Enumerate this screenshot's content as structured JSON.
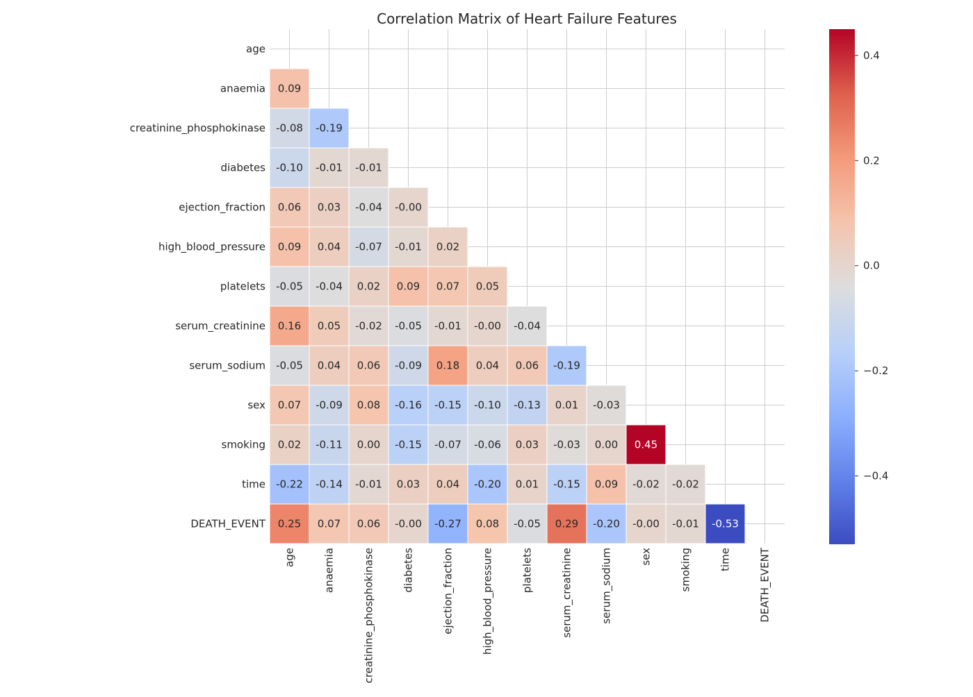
{
  "chart_data": {
    "type": "heatmap",
    "title": "Correlation Matrix of Heart Failure Features",
    "variables": [
      "age",
      "anaemia",
      "creatinine_phosphokinase",
      "diabetes",
      "ejection_fraction",
      "high_blood_pressure",
      "platelets",
      "serum_creatinine",
      "serum_sodium",
      "sex",
      "smoking",
      "time",
      "DEATH_EVENT"
    ],
    "mask": "upper-triangle-including-diagonal",
    "values": [
      [],
      [
        0.09
      ],
      [
        -0.08,
        -0.19
      ],
      [
        -0.1,
        -0.01,
        -0.01
      ],
      [
        0.06,
        0.03,
        -0.04,
        -0.0
      ],
      [
        0.09,
        0.04,
        -0.07,
        -0.01,
        0.02
      ],
      [
        -0.05,
        -0.04,
        0.02,
        0.09,
        0.07,
        0.05
      ],
      [
        0.16,
        0.05,
        -0.02,
        -0.05,
        -0.01,
        -0.0,
        -0.04
      ],
      [
        -0.05,
        0.04,
        0.06,
        -0.09,
        0.18,
        0.04,
        0.06,
        -0.19
      ],
      [
        0.07,
        -0.09,
        0.08,
        -0.16,
        -0.15,
        -0.1,
        -0.13,
        0.01,
        -0.03
      ],
      [
        0.02,
        -0.11,
        0.0,
        -0.15,
        -0.07,
        -0.06,
        0.03,
        -0.03,
        0.0,
        0.45
      ],
      [
        -0.22,
        -0.14,
        -0.01,
        0.03,
        0.04,
        -0.2,
        0.01,
        -0.15,
        0.09,
        -0.02,
        -0.02
      ],
      [
        0.25,
        0.07,
        0.06,
        -0.0,
        -0.27,
        0.08,
        -0.05,
        0.29,
        -0.2,
        -0.0,
        -0.01,
        -0.53
      ]
    ],
    "value_labels": [
      [],
      [
        "0.09"
      ],
      [
        "-0.08",
        "-0.19"
      ],
      [
        "-0.10",
        "-0.01",
        "-0.01"
      ],
      [
        "0.06",
        "0.03",
        "-0.04",
        "-0.00"
      ],
      [
        "0.09",
        "0.04",
        "-0.07",
        "-0.01",
        "0.02"
      ],
      [
        "-0.05",
        "-0.04",
        "0.02",
        "0.09",
        "0.07",
        "0.05"
      ],
      [
        "0.16",
        "0.05",
        "-0.02",
        "-0.05",
        "-0.01",
        "-0.00",
        "-0.04"
      ],
      [
        "-0.05",
        "0.04",
        "0.06",
        "-0.09",
        "0.18",
        "0.04",
        "0.06",
        "-0.19"
      ],
      [
        "0.07",
        "-0.09",
        "0.08",
        "-0.16",
        "-0.15",
        "-0.10",
        "-0.13",
        "0.01",
        "-0.03"
      ],
      [
        "0.02",
        "-0.11",
        "0.00",
        "-0.15",
        "-0.07",
        "-0.06",
        "0.03",
        "-0.03",
        "0.00",
        "0.45"
      ],
      [
        "-0.22",
        "-0.14",
        "-0.01",
        "0.03",
        "0.04",
        "-0.20",
        "0.01",
        "-0.15",
        "0.09",
        "-0.02",
        "-0.02"
      ],
      [
        "0.25",
        "0.07",
        "0.06",
        "-0.00",
        "-0.27",
        "0.08",
        "-0.05",
        "0.29",
        "-0.20",
        "-0.00",
        "-0.01",
        "-0.53"
      ]
    ],
    "colormap": "coolwarm",
    "color_range": [
      -0.53,
      0.45
    ],
    "colorbar_ticks": [
      0.4,
      0.2,
      0.0,
      -0.2,
      -0.4
    ],
    "colorbar_tick_labels": [
      "0.4",
      "0.2",
      "0.0",
      "−0.2",
      "−0.4"
    ],
    "grid": true,
    "colors": {
      "cool_end": "#3b4cc0",
      "neutral": "#dddddd",
      "warm_end": "#b40426",
      "grid_line": "#cccccc",
      "text_dark": "#262626",
      "text_light": "#ffffff"
    }
  }
}
